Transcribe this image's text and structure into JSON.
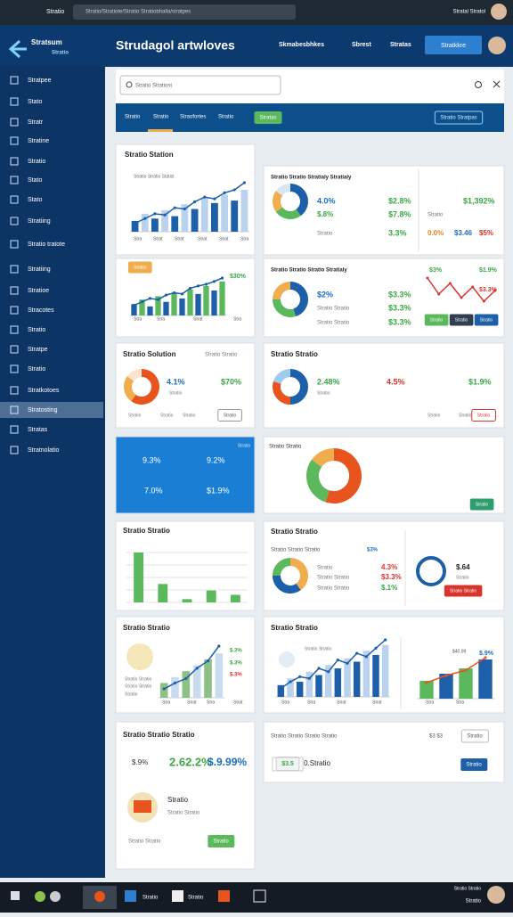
{
  "browser": {
    "tab": "Stratio",
    "address": "Stratio/Stratiote/Stratio Stratiobhalla/stratpes",
    "user": "Stratal Stratol"
  },
  "header": {
    "logo": "Stratsum",
    "logo_sub": "Stratio",
    "title": "Strudagol artwloves",
    "nav": [
      "Skmabesbhkes",
      "Sbrest",
      "Stratas"
    ],
    "button": "Stratkkre"
  },
  "sidebar": [
    "Stratpee",
    "Stato",
    "Stratr",
    "Stratine",
    "Stratio",
    "Stato",
    "Stato",
    "Stratiing",
    "Stratio tratote",
    "Stratiing",
    "Stratioe",
    "Stracotes",
    "Stratio",
    "Stratpe",
    "Stratio",
    "Stratkotoes",
    "Stratosting",
    "Stratas",
    "Stratnolatio"
  ],
  "search": "Stratio Stratiost",
  "tabs": [
    "Stratio",
    "Stratio",
    "Straofortes",
    "Stratio"
  ],
  "tab_button": "Stratas",
  "tab_right": "Stratio Stratpas",
  "cards": [
    {
      "title": "Stratio Station",
      "texts": [
        "Stratio Stratio Statist",
        "Stra",
        "Strat",
        "Strat",
        "Strat",
        "Strat",
        "Stra"
      ],
      "charts": [
        {
          "type": "bar-line",
          "bars": [
            18,
            30,
            22,
            36,
            26,
            46,
            38,
            56,
            48,
            62,
            52,
            70
          ],
          "line": [
            14,
            22,
            30,
            28,
            40,
            38,
            50,
            58,
            55,
            65,
            70,
            82
          ],
          "colors": [
            "#1d5fa8",
            "#b9d3ee",
            "#1d5fa8"
          ]
        }
      ]
    },
    {
      "title": "Stratio Stratio Stratialy Stratialy",
      "texts": [
        "4.0%",
        "$2.8%",
        "$.8%",
        "$7.8%",
        "Stratio",
        "3.3%",
        "$1,392%",
        "Stratio",
        "0.0%",
        "$3.46",
        "$5%"
      ],
      "charts": [
        {
          "type": "donut",
          "values": [
            40,
            25,
            20,
            15
          ],
          "colors": [
            "#1d5fa8",
            "#5cb85c",
            "#f0ad4e",
            "#d9e6f2"
          ]
        }
      ]
    },
    {
      "title": "Stratio",
      "texts": [
        "$30%",
        "Stra",
        "Stra",
        "Strat",
        "Stra"
      ],
      "charts": [
        {
          "type": "bar-line",
          "bars": [
            20,
            28,
            16,
            34,
            24,
            40,
            30,
            46,
            38,
            52,
            44,
            60
          ],
          "line": [
            18,
            24,
            30,
            28,
            36,
            40,
            38,
            48,
            52,
            55,
            60,
            66
          ],
          "colors": [
            "#1d5fa8",
            "#5cb85c",
            "#1d5fa8"
          ]
        }
      ]
    },
    {
      "title": "Stratio Stratio Stratio Stratialy",
      "texts": [
        "$2%",
        "$3.3%",
        "Stratio Stratio",
        "$3.3%",
        "Stratio Stratio",
        "$3.3%",
        "$3%",
        "$1.9%",
        "$3.3%",
        "Stratio",
        "Stratio",
        "Stratio"
      ],
      "charts": [
        {
          "type": "donut",
          "values": [
            45,
            30,
            25
          ],
          "colors": [
            "#1d5fa8",
            "#5cb85c",
            "#f0ad4e"
          ]
        },
        {
          "type": "line",
          "values": [
            40,
            22,
            34,
            18,
            30,
            14,
            26
          ],
          "colors": [
            "#d9342b"
          ]
        }
      ]
    },
    {
      "title": "Stratio Solution",
      "texts": [
        "Stratio Stratio",
        "4.1%",
        "$70%",
        "Stratio",
        "Stratio",
        "Stratio",
        "Stratio",
        "Stratio"
      ],
      "charts": [
        {
          "type": "donut",
          "values": [
            60,
            25,
            15
          ],
          "colors": [
            "#e8541e",
            "#f0ad4e",
            "#fbe3cf"
          ]
        }
      ]
    },
    {
      "title": "Stratio Stratio",
      "texts": [
        "2.48%",
        "4.5%",
        "$1.9%",
        "Stratio",
        "Stratio",
        "Stratio",
        "Stratio"
      ],
      "charts": [
        {
          "type": "donut",
          "values": [
            50,
            30,
            20
          ],
          "colors": [
            "#1d5fa8",
            "#e8541e",
            "#9ecbf0"
          ]
        }
      ]
    },
    {
      "title": "Stratio",
      "texts": [
        "9.3%",
        "9.2%",
        "7.0%",
        "$1.9%"
      ],
      "charts": []
    },
    {
      "title": "Stratio Stratio",
      "texts": [
        "Stratio"
      ],
      "charts": [
        {
          "type": "donut",
          "values": [
            55,
            30,
            15
          ],
          "colors": [
            "#e8541e",
            "#5cb85c",
            "#f0ad4e"
          ]
        }
      ]
    },
    {
      "title": "Stratio Stratio",
      "texts": [],
      "charts": [
        {
          "type": "bar",
          "values": [
            92,
            34,
            6,
            22,
            14
          ],
          "colors": [
            "#5cb85c"
          ]
        }
      ]
    },
    {
      "title": "Stratio Stratio",
      "texts": [
        "Stratio Stratio Stratio",
        "$3%",
        "Stratio",
        "4.3%",
        "Stratio Stratio",
        "$3.3%",
        "Stratio Stratio",
        "$.1%",
        "$.64",
        "Stratio",
        "Stratio Stratio"
      ],
      "charts": [
        {
          "type": "donut",
          "values": [
            40,
            35,
            25
          ],
          "colors": [
            "#f0ad4e",
            "#1d5fa8",
            "#5cb85c"
          ]
        }
      ]
    },
    {
      "title": "Stratio Stratio",
      "texts": [
        "Stratio Stratio",
        "Stratio Stratio",
        "Stratio",
        "$.3%",
        "$.3%",
        "$.3%",
        "Stra",
        "Strat",
        "Stra",
        "Strat"
      ],
      "charts": [
        {
          "type": "bar-line",
          "bars": [
            20,
            28,
            36,
            44,
            52,
            60
          ],
          "line": [
            12,
            20,
            26,
            40,
            50,
            70
          ],
          "colors": [
            "#8cc084",
            "#c9dbee",
            "#1d5fa8"
          ]
        }
      ]
    },
    {
      "title": "Stratio Stratio",
      "texts": [
        "Stratio Stratio",
        "$40.99",
        "$.9%",
        "Stra",
        "Stra",
        "Strat",
        "Strat",
        "Stra",
        "Stra"
      ],
      "charts": [
        {
          "type": "bar-line",
          "bars": [
            14,
            22,
            18,
            30,
            26,
            38,
            34,
            46,
            42,
            55,
            50,
            62
          ],
          "line": [
            10,
            18,
            24,
            22,
            34,
            30,
            44,
            40,
            52,
            48,
            58,
            68
          ],
          "colors": [
            "#1d5fa8",
            "#b9d3ee",
            "#1d5fa8"
          ]
        },
        {
          "type": "bar-line",
          "bars": [
            20,
            28,
            34,
            44
          ],
          "line": [
            18,
            26,
            32,
            46
          ],
          "colors": [
            "#5cb85c",
            "#1d5fa8",
            "#e8541e"
          ]
        }
      ]
    },
    {
      "title": "Stratio Stratio Stratio",
      "texts": [
        "$.9%",
        "2.62.2%",
        "$.9.99%",
        "Stratio",
        "Stratio Stratio",
        "Stratio Stratio",
        "Stratio"
      ],
      "charts": []
    },
    {
      "title": "Stratio Stratio Stratio Stratio",
      "texts": [
        "$3 $3",
        "Stratio",
        "$3.5",
        "0.Stratio",
        "Stratio"
      ],
      "charts": []
    }
  ],
  "taskbar": {
    "items": [
      "Stratio",
      "Stratio"
    ],
    "clock": [
      "Stratio Stratio",
      "Stratio"
    ]
  }
}
